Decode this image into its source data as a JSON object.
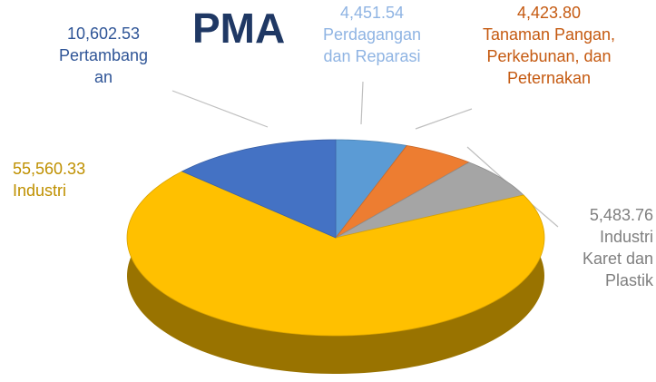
{
  "chart_data": {
    "type": "pie",
    "title": "PMA",
    "categories": [
      "Perdagangan dan Reparasi",
      "Tanaman Pangan, Perkebunan, dan Peternakan",
      "Industri Karet dan Plastik",
      "Industri",
      "Pertambangan"
    ],
    "values": [
      4451.54,
      4423.8,
      5483.76,
      55560.33,
      10602.53
    ],
    "value_labels": [
      "4,451.54",
      "4,423.80",
      "5,483.76",
      "55,560.33",
      "10,602.53"
    ],
    "colors": [
      "#5b9bd5",
      "#ed7d31",
      "#a5a5a5",
      "#ffc000",
      "#4472c4"
    ]
  }
}
